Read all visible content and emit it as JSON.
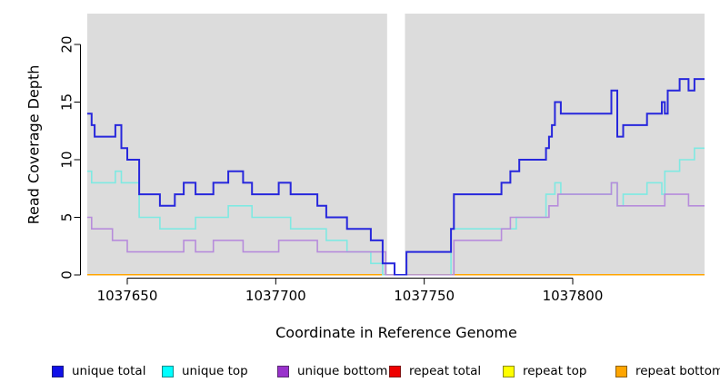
{
  "chart_data": {
    "type": "line",
    "subtype": "step",
    "title": "",
    "xlabel": "Coordinate in Reference Genome",
    "ylabel": "Read Coverage Depth",
    "xlim": [
      1037636.5,
      1037844.5
    ],
    "ylim": [
      0,
      22.7
    ],
    "xticks": [
      1037650,
      1037700,
      1037750,
      1037800
    ],
    "yticks": [
      0,
      5,
      10,
      15,
      20
    ],
    "grid": "off",
    "plot_background_color": "#DCDCDC",
    "axis_color": "#000000",
    "gap_band": {
      "x_start": 1037737.5,
      "x_end": 1037743.5,
      "color": "#FFFFFF"
    },
    "legend_position": "bottom",
    "legend": [
      {
        "label": "unique total",
        "swatch_color": "#1111E8"
      },
      {
        "label": "unique top",
        "swatch_color": "#00FFFF"
      },
      {
        "label": "unique bottom",
        "swatch_color": "#9932CC"
      },
      {
        "label": "repeat total",
        "swatch_color": "#EE0000"
      },
      {
        "label": "repeat top",
        "swatch_color": "#FFFF00"
      },
      {
        "label": "repeat bottom",
        "swatch_color": "#FFA500"
      }
    ],
    "series": [
      {
        "name": "repeat total",
        "line_color": "#DD0000",
        "line_width": 1.2,
        "steps": [
          [
            1037636.5,
            0
          ]
        ]
      },
      {
        "name": "repeat top",
        "line_color": "#FFFF00",
        "line_width": 1.2,
        "steps": [
          [
            1037636.5,
            0
          ]
        ]
      },
      {
        "name": "repeat bottom",
        "line_color": "#FFA500",
        "line_width": 2,
        "steps": [
          [
            1037636.5,
            0
          ]
        ]
      },
      {
        "name": "unique top",
        "line_color": "#7FE9E2",
        "line_width": 1.6,
        "steps": [
          [
            1037636.5,
            9
          ],
          [
            1037638,
            8
          ],
          [
            1037646,
            9
          ],
          [
            1037648,
            8
          ],
          [
            1037654,
            5
          ],
          [
            1037661,
            4
          ],
          [
            1037673,
            5
          ],
          [
            1037684,
            6
          ],
          [
            1037692,
            5
          ],
          [
            1037705,
            4
          ],
          [
            1037717,
            3
          ],
          [
            1037724,
            2
          ],
          [
            1037732,
            1
          ],
          [
            1037736,
            0
          ],
          [
            1037759,
            4
          ],
          [
            1037781,
            5
          ],
          [
            1037791,
            7
          ],
          [
            1037794,
            8
          ],
          [
            1037796,
            7
          ],
          [
            1037813,
            8
          ],
          [
            1037815,
            6
          ],
          [
            1037817,
            7
          ],
          [
            1037825,
            8
          ],
          [
            1037830,
            7
          ],
          [
            1037831,
            9
          ],
          [
            1037836,
            10
          ],
          [
            1037841,
            11
          ]
        ]
      },
      {
        "name": "unique bottom",
        "line_color": "#B78CDB",
        "line_width": 1.6,
        "steps": [
          [
            1037636.5,
            5
          ],
          [
            1037638,
            4
          ],
          [
            1037645,
            3
          ],
          [
            1037650,
            2
          ],
          [
            1037669,
            3
          ],
          [
            1037673,
            2
          ],
          [
            1037679,
            3
          ],
          [
            1037689,
            2
          ],
          [
            1037701,
            3
          ],
          [
            1037714,
            2
          ],
          [
            1037737,
            0
          ],
          [
            1037760,
            3
          ],
          [
            1037776,
            4
          ],
          [
            1037779,
            5
          ],
          [
            1037792,
            6
          ],
          [
            1037795,
            7
          ],
          [
            1037813,
            8
          ],
          [
            1037815,
            6
          ],
          [
            1037831,
            7
          ],
          [
            1037839,
            6
          ]
        ]
      },
      {
        "name": "unique total",
        "line_color": "#2727DC",
        "line_width": 2,
        "steps": [
          [
            1037636.5,
            14
          ],
          [
            1037638,
            13
          ],
          [
            1037639,
            12
          ],
          [
            1037646,
            13
          ],
          [
            1037648,
            11
          ],
          [
            1037650,
            10
          ],
          [
            1037654,
            7
          ],
          [
            1037661,
            6
          ],
          [
            1037666,
            7
          ],
          [
            1037669,
            8
          ],
          [
            1037673,
            7
          ],
          [
            1037679,
            8
          ],
          [
            1037684,
            9
          ],
          [
            1037689,
            8
          ],
          [
            1037692,
            7
          ],
          [
            1037701,
            8
          ],
          [
            1037705,
            7
          ],
          [
            1037714,
            6
          ],
          [
            1037717,
            5
          ],
          [
            1037724,
            4
          ],
          [
            1037732,
            3
          ],
          [
            1037736,
            1
          ],
          [
            1037740,
            0
          ],
          [
            1037744,
            2
          ],
          [
            1037759,
            4
          ],
          [
            1037760,
            7
          ],
          [
            1037776,
            8
          ],
          [
            1037779,
            9
          ],
          [
            1037782,
            10
          ],
          [
            1037791,
            11
          ],
          [
            1037792,
            12
          ],
          [
            1037793,
            13
          ],
          [
            1037794,
            15
          ],
          [
            1037796,
            14
          ],
          [
            1037813,
            16
          ],
          [
            1037815,
            12
          ],
          [
            1037817,
            13
          ],
          [
            1037825,
            14
          ],
          [
            1037830,
            15
          ],
          [
            1037831,
            14
          ],
          [
            1037832,
            16
          ],
          [
            1037836,
            17
          ],
          [
            1037839,
            16
          ],
          [
            1037841,
            17
          ]
        ]
      }
    ]
  }
}
